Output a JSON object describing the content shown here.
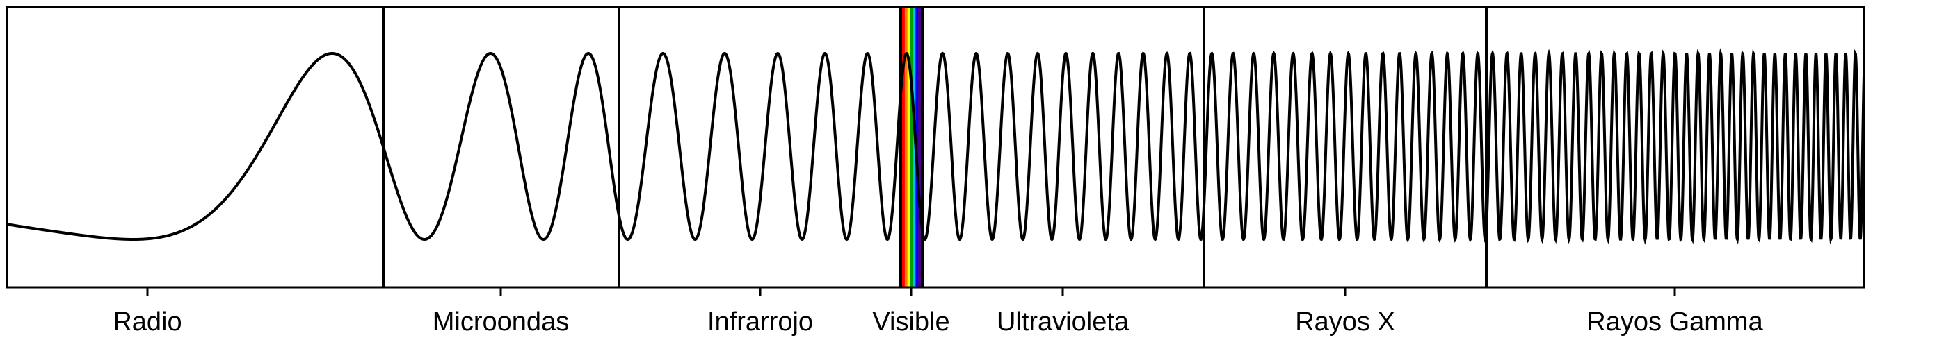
{
  "bands": [
    {
      "label": "Radio"
    },
    {
      "label": "Microondas"
    },
    {
      "label": "Infrarrojo"
    },
    {
      "label": "Visible"
    },
    {
      "label": "Ultravioleta"
    },
    {
      "label": "Rayos X"
    },
    {
      "label": "Rayos Gamma"
    }
  ],
  "visible_spectrum_colors": [
    "#ff0000",
    "#ff8000",
    "#ffff00",
    "#00a000",
    "#00c0ff",
    "#0000ff",
    "#4b0082"
  ],
  "wave_color": "#000000"
}
